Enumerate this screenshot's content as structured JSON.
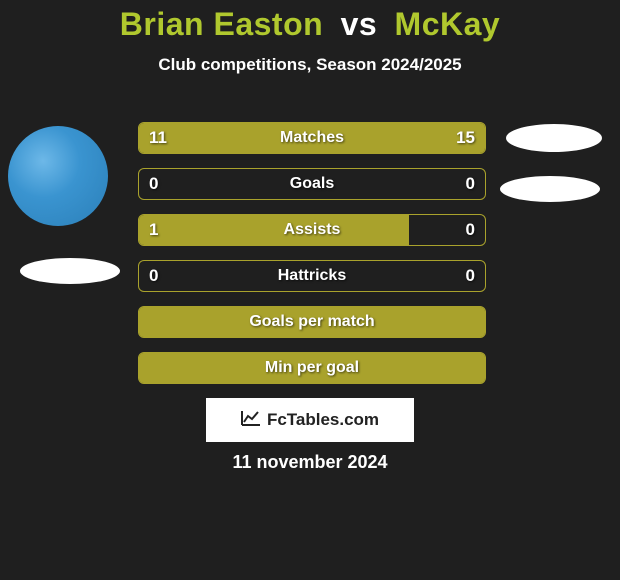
{
  "title": {
    "left": "Brian Easton",
    "vs": "vs",
    "right": "McKay",
    "left_color": "#b0c82e",
    "vs_color": "#ffffff",
    "right_color": "#b0c82e",
    "fontsize": 32
  },
  "subtitle": {
    "text": "Club competitions, Season 2024/2025",
    "fontsize": 17
  },
  "bars": {
    "bar_color": "#a9a22c",
    "border_color": "#a9a22c",
    "label_color": "#ffffff",
    "value_color": "#ffffff",
    "label_fontsize": 16,
    "value_fontsize": 17,
    "rows": [
      {
        "label": "Matches",
        "left": "11",
        "right": "15",
        "left_pct": 40,
        "right_pct": 60
      },
      {
        "label": "Goals",
        "left": "0",
        "right": "0",
        "left_pct": 0,
        "right_pct": 0
      },
      {
        "label": "Assists",
        "left": "1",
        "right": "0",
        "left_pct": 78,
        "right_pct": 0
      },
      {
        "label": "Hattricks",
        "left": "0",
        "right": "0",
        "left_pct": 0,
        "right_pct": 0
      },
      {
        "label": "Goals per match",
        "left": "",
        "right": "",
        "left_pct": 100,
        "right_pct": 100
      },
      {
        "label": "Min per goal",
        "left": "",
        "right": "",
        "left_pct": 100,
        "right_pct": 100
      }
    ]
  },
  "badge": {
    "text": "FcTables.com",
    "fontsize": 17
  },
  "date": {
    "text": "11 november 2024",
    "fontsize": 18
  },
  "background_color": "#1f1f1f"
}
